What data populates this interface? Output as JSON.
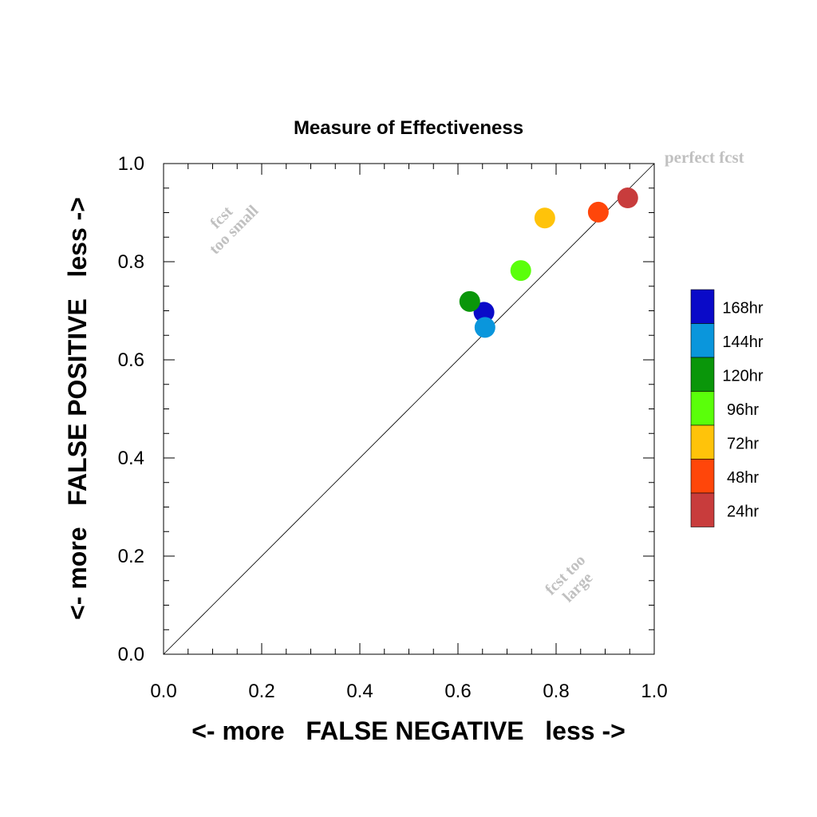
{
  "chart_data": {
    "type": "scatter",
    "title": "Measure of Effectiveness",
    "xlabel": "<- more   FALSE NEGATIVE   less ->",
    "ylabel": "<- more   FALSE POSITIVE   less ->",
    "xlim": [
      0.0,
      1.0
    ],
    "ylim": [
      0.0,
      1.0
    ],
    "xticks": [
      "0.0",
      "0.2",
      "0.4",
      "0.6",
      "0.8",
      "1.0"
    ],
    "yticks": [
      "0.0",
      "0.2",
      "0.4",
      "0.6",
      "0.8",
      "1.0"
    ],
    "grid": false,
    "diagonal": true,
    "legend_position": "right",
    "points": [
      {
        "label": "168hr",
        "x": 0.653,
        "y": 0.697,
        "color": "#0a0ac8"
      },
      {
        "label": "144hr",
        "x": 0.655,
        "y": 0.666,
        "color": "#0a96dc"
      },
      {
        "label": "120hr",
        "x": 0.624,
        "y": 0.719,
        "color": "#0a960a"
      },
      {
        "label": "96hr",
        "x": 0.728,
        "y": 0.782,
        "color": "#5aff0a"
      },
      {
        "label": "72hr",
        "x": 0.777,
        "y": 0.889,
        "color": "#ffc30a"
      },
      {
        "label": "48hr",
        "x": 0.886,
        "y": 0.901,
        "color": "#ff460a"
      },
      {
        "label": "24hr",
        "x": 0.946,
        "y": 0.93,
        "color": "#c83c3c"
      }
    ],
    "annotations": {
      "perfect": "perfect fcst",
      "too_small_1": "fcst",
      "too_small_2": "too small",
      "too_large_1": "fcst too",
      "too_large_2": "large"
    }
  }
}
